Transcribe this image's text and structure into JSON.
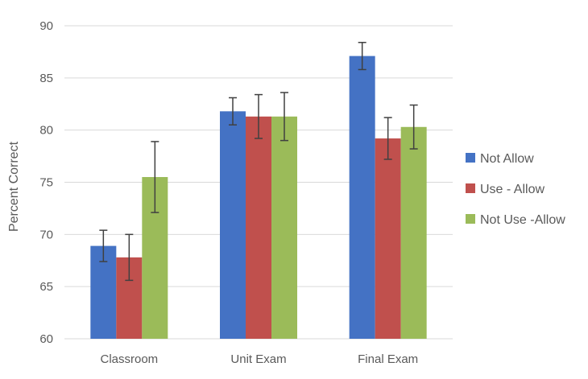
{
  "chart_data": {
    "type": "bar",
    "title": "",
    "xlabel": "",
    "ylabel": "Percent Correct",
    "ylim": [
      60,
      90
    ],
    "yticks": [
      60,
      65,
      70,
      75,
      80,
      85,
      90
    ],
    "grid": true,
    "legend_position": "right",
    "categories": [
      "Classroom",
      "Unit Exam",
      "Final Exam"
    ],
    "series": [
      {
        "name": "Not Allow",
        "color": "#4472C4",
        "values": [
          68.9,
          81.8,
          87.1
        ],
        "errors": [
          1.5,
          1.3,
          1.3
        ]
      },
      {
        "name": "Use - Allow",
        "color": "#C0504D",
        "values": [
          67.8,
          81.3,
          79.2
        ],
        "errors": [
          2.2,
          2.1,
          2.0
        ]
      },
      {
        "name": "Not Use -Allow",
        "color": "#9BBB59",
        "values": [
          75.5,
          81.3,
          80.3
        ],
        "errors": [
          3.4,
          2.3,
          2.1
        ]
      }
    ]
  }
}
